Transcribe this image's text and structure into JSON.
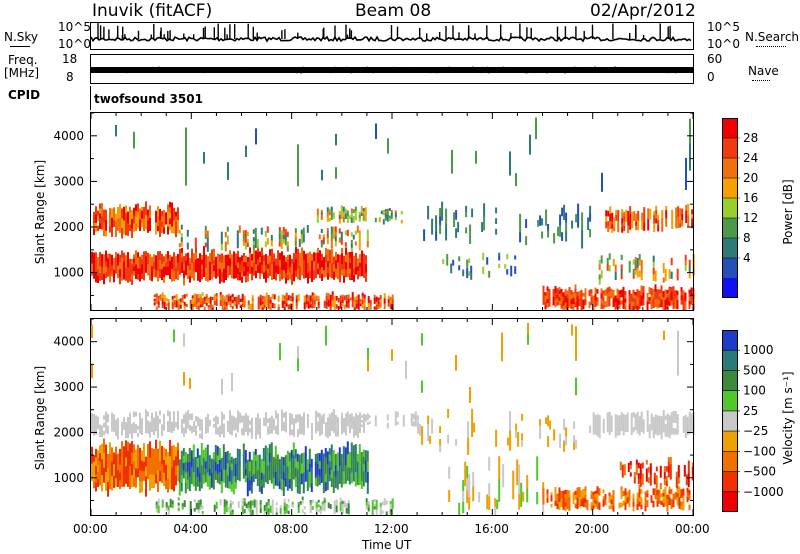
{
  "header": {
    "station": "Inuvik (fitACF)",
    "beam": "Beam 08",
    "date": "02/Apr/2012"
  },
  "top_panels": {
    "nsky_label": "N.Sky",
    "nsky_ticks": [
      "10^5",
      "10^0"
    ],
    "nsearch_label": "N.Search",
    "nsearch_ticks": [
      "10^5",
      "10^0"
    ],
    "freq_label": "Freq.",
    "freq_unit": "[MHz]",
    "freq_ticks": [
      "18",
      "8"
    ],
    "nave_label": "Nave",
    "nave_ticks": [
      "60",
      "0"
    ],
    "cpid_label": "CPID",
    "cpid_value": "twofsound 3501"
  },
  "colors": {
    "power_scale": [
      "#1010f0",
      "#2450b8",
      "#2f7a78",
      "#4a9a48",
      "#9acd32",
      "#f5a000",
      "#f07010",
      "#f03a10",
      "#f00000"
    ],
    "velocity_scale": [
      "#f00000",
      "#f03000",
      "#f07000",
      "#f0a000",
      "#c8c8c8",
      "#50c828",
      "#3a8a3a",
      "#2a7a7a",
      "#1e3cc8"
    ]
  },
  "chart_data": [
    {
      "type": "heatmap",
      "name": "power",
      "ylabel": "Slant Range [km]",
      "ylim": [
        180,
        4500
      ],
      "yticks": [
        1000,
        2000,
        3000,
        4000
      ],
      "xlim": [
        0,
        24
      ],
      "xticks": [
        "00:00",
        "04:00",
        "08:00",
        "12:00",
        "16:00",
        "20:00",
        "00:00"
      ],
      "colorbar_label": "Power [dB]",
      "colorbar_ticks": [
        "28",
        "24",
        "20",
        "16",
        "12",
        "8",
        "4"
      ],
      "colorbar_range": [
        0,
        32
      ]
    },
    {
      "type": "heatmap",
      "name": "velocity",
      "xlabel": "Time UT",
      "ylabel": "Slant Range [km]",
      "ylim": [
        180,
        4500
      ],
      "yticks": [
        1000,
        2000,
        3000,
        4000
      ],
      "xlim": [
        0,
        24
      ],
      "xticks": [
        "00:00",
        "04:00",
        "08:00",
        "12:00",
        "16:00",
        "20:00",
        "00:00"
      ],
      "colorbar_label": "Velocity [m s⁻¹]",
      "colorbar_ticks": [
        "1000",
        "500",
        "100",
        "25",
        "−25",
        "−100",
        "−500",
        "−1000"
      ]
    }
  ]
}
